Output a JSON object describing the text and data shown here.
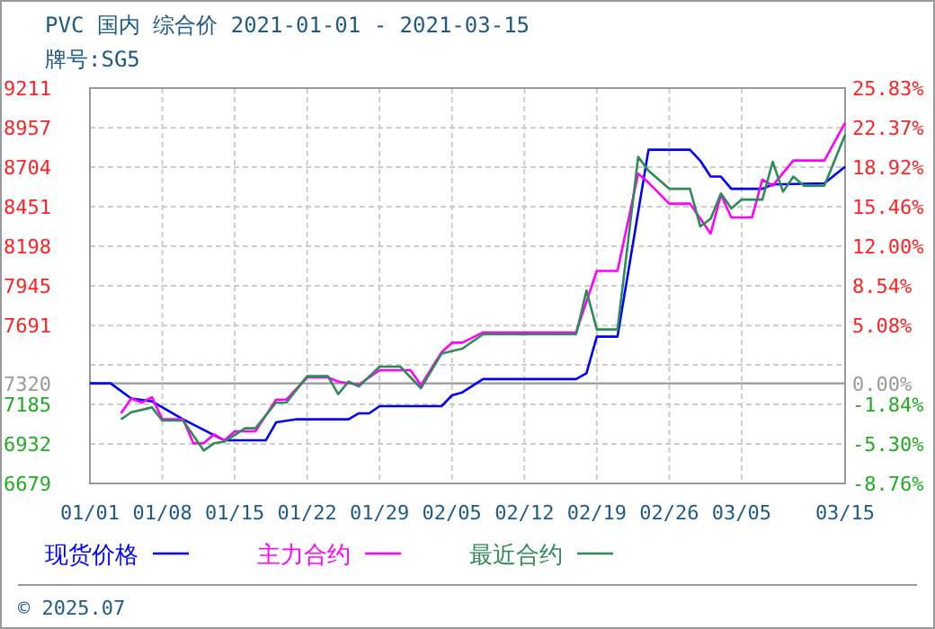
{
  "chart_data": {
    "type": "line",
    "title": "PVC 国内 综合价 2021-01-01 - 2021-03-15",
    "subtitle": "牌号:SG5",
    "xlim": [
      "2021-01-01",
      "2021-03-15"
    ],
    "xticks": [
      {
        "value": "2021-01-01",
        "label": "01/01"
      },
      {
        "value": "2021-01-08",
        "label": "01/08"
      },
      {
        "value": "2021-01-15",
        "label": "01/15"
      },
      {
        "value": "2021-01-22",
        "label": "01/22"
      },
      {
        "value": "2021-01-29",
        "label": "01/29"
      },
      {
        "value": "2021-02-05",
        "label": "02/05"
      },
      {
        "value": "2021-02-12",
        "label": "02/12"
      },
      {
        "value": "2021-02-19",
        "label": "02/19"
      },
      {
        "value": "2021-02-26",
        "label": "02/26"
      },
      {
        "value": "2021-03-05",
        "label": "03/05"
      },
      {
        "value": "2021-03-15",
        "label": "03/15"
      }
    ],
    "ylim": [
      6679,
      9211
    ],
    "yticks": [
      6679,
      6932,
      7185,
      7320,
      {
        "value": 7438,
        "label": null
      },
      7691,
      7945,
      8198,
      8451,
      8704,
      8957,
      9211
    ],
    "y2lim": [
      -8.76,
      25.83
    ],
    "y2ticks": [
      {
        "value": -8.76,
        "label": "-8.76%"
      },
      {
        "value": -5.3,
        "label": "-5.30%"
      },
      {
        "value": -1.84,
        "label": "-1.84%"
      },
      {
        "value": 0,
        "label": "0.00%"
      },
      {
        "value": 5.08,
        "label": "5.08%"
      },
      {
        "value": 8.54,
        "label": "8.54%"
      },
      {
        "value": 12,
        "label": "12.00%"
      },
      {
        "value": 15.46,
        "label": "15.46%"
      },
      {
        "value": 18.92,
        "label": "18.92%"
      },
      {
        "value": 22.37,
        "label": "22.37%"
      },
      {
        "value": 25.83,
        "label": "25.83%"
      }
    ],
    "ref_lines": [
      {
        "axis": "y",
        "value": 7320,
        "color": "#999999"
      }
    ],
    "grid": true,
    "legend": "bottom",
    "line_style": "solid",
    "marker": "none",
    "annotations": [
      "© 2025.07"
    ],
    "series": [
      {
        "name": "现货价格",
        "color": "#0000ff",
        "x": [
          "2021-01-01",
          "2021-01-03",
          "2021-01-05",
          "2021-01-07",
          "2021-01-10",
          "2021-01-14",
          "2021-01-18",
          "2021-01-19",
          "2021-01-21",
          "2021-01-26",
          "2021-01-27",
          "2021-01-28",
          "2021-01-29",
          "2021-02-04",
          "2021-02-05",
          "2021-02-06",
          "2021-02-08",
          "2021-02-17",
          "2021-02-18",
          "2021-02-19",
          "2021-02-21",
          "2021-02-24",
          "2021-02-28",
          "2021-03-01",
          "2021-03-02",
          "2021-03-03",
          "2021-03-04",
          "2021-03-07",
          "2021-03-08",
          "2021-03-13",
          "2021-03-15"
        ],
        "values": [
          7320,
          7320,
          7223,
          7205,
          7090,
          6955,
          6955,
          7070,
          7090,
          7090,
          7128,
          7128,
          7174,
          7174,
          7243,
          7262,
          7347,
          7347,
          7385,
          7619,
          7619,
          8816,
          8816,
          8746,
          8644,
          8644,
          8566,
          8566,
          8594,
          8601,
          8708
        ]
      },
      {
        "name": "主力合约",
        "color": "#ff00ff",
        "x": [
          "2021-01-04",
          "2021-01-05",
          "2021-01-06",
          "2021-01-07",
          "2021-01-08",
          "2021-01-10",
          "2021-01-11",
          "2021-01-12",
          "2021-01-13",
          "2021-01-14",
          "2021-01-15",
          "2021-01-17",
          "2021-01-19",
          "2021-01-20",
          "2021-01-22",
          "2021-01-24",
          "2021-01-25",
          "2021-01-27",
          "2021-01-29",
          "2021-02-01",
          "2021-02-02",
          "2021-02-04",
          "2021-02-05",
          "2021-02-06",
          "2021-02-08",
          "2021-02-17",
          "2021-02-19",
          "2021-02-21",
          "2021-02-23",
          "2021-02-24",
          "2021-02-26",
          "2021-02-28",
          "2021-03-02",
          "2021-03-03",
          "2021-03-04",
          "2021-03-06",
          "2021-03-07",
          "2021-03-08",
          "2021-03-10",
          "2021-03-13",
          "2021-03-15"
        ],
        "values": [
          7128,
          7223,
          7197,
          7231,
          7090,
          7090,
          6936,
          6936,
          6994,
          6955,
          7013,
          7013,
          7216,
          7216,
          7358,
          7358,
          7331,
          7312,
          7404,
          7404,
          7308,
          7519,
          7580,
          7580,
          7646,
          7646,
          8040,
          8040,
          8663,
          8605,
          8471,
          8471,
          8279,
          8528,
          8382,
          8382,
          8624,
          8586,
          8747,
          8747,
          8989
        ]
      },
      {
        "name": "最近合约",
        "color": "#2e8b57",
        "x": [
          "2021-01-04",
          "2021-01-05",
          "2021-01-07",
          "2021-01-08",
          "2021-01-10",
          "2021-01-12",
          "2021-01-13",
          "2021-01-14",
          "2021-01-16",
          "2021-01-17",
          "2021-01-19",
          "2021-01-20",
          "2021-01-22",
          "2021-01-24",
          "2021-01-25",
          "2021-01-26",
          "2021-01-27",
          "2021-01-29",
          "2021-01-31",
          "2021-02-02",
          "2021-02-04",
          "2021-02-06",
          "2021-02-08",
          "2021-02-17",
          "2021-02-18",
          "2021-02-19",
          "2021-02-21",
          "2021-02-23",
          "2021-02-24",
          "2021-02-26",
          "2021-02-28",
          "2021-03-01",
          "2021-03-02",
          "2021-03-03",
          "2021-03-04",
          "2021-03-05",
          "2021-03-07",
          "2021-03-08",
          "2021-03-09",
          "2021-03-10",
          "2021-03-11",
          "2021-03-13",
          "2021-03-15"
        ],
        "values": [
          7090,
          7135,
          7166,
          7082,
          7082,
          6890,
          6936,
          6947,
          7032,
          7032,
          7197,
          7197,
          7366,
          7366,
          7251,
          7331,
          7300,
          7427,
          7427,
          7289,
          7511,
          7542,
          7634,
          7634,
          7914,
          7665,
          7665,
          8770,
          8682,
          8566,
          8566,
          8325,
          8374,
          8536,
          8440,
          8497,
          8497,
          8739,
          8547,
          8644,
          8586,
          8586,
          8912
        ]
      }
    ]
  }
}
